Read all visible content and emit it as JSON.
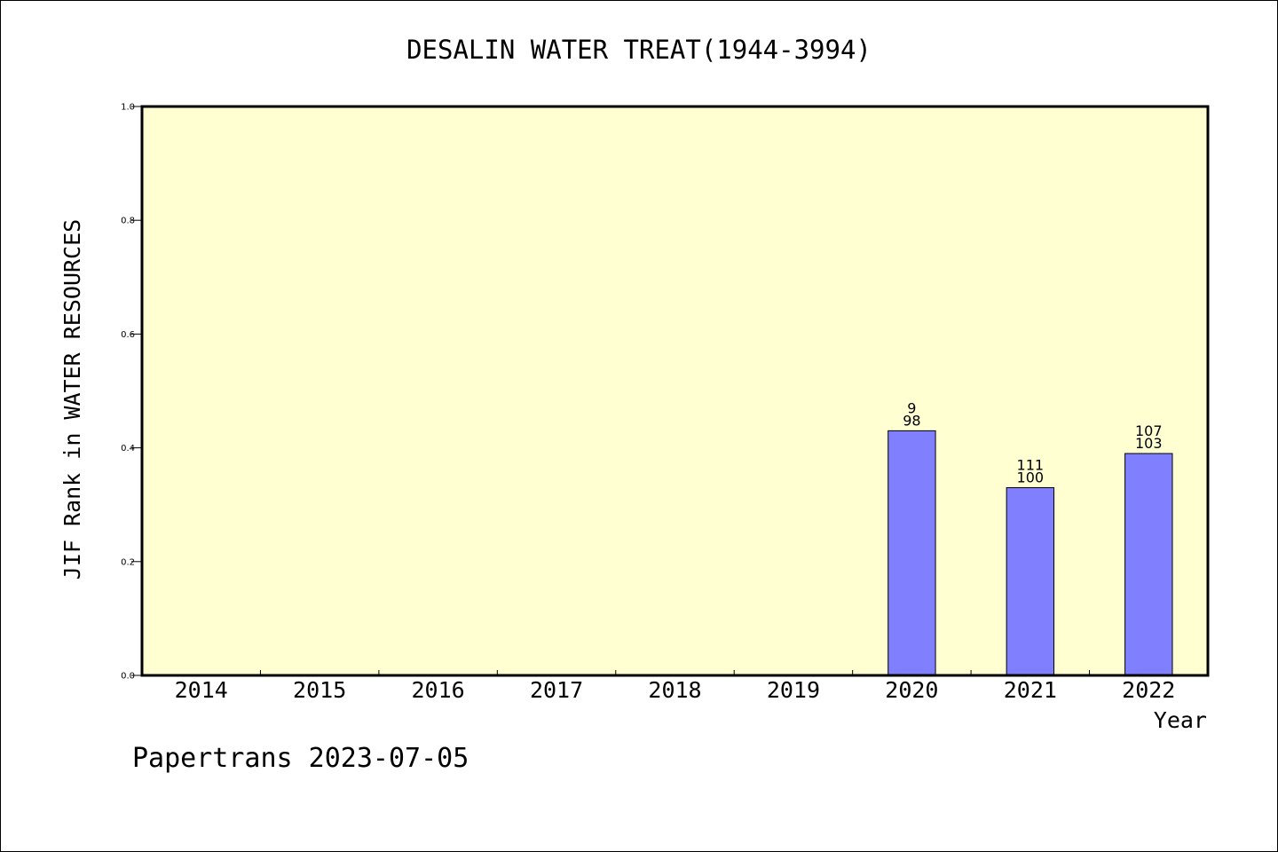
{
  "chart_data": {
    "type": "bar",
    "title": "DESALIN WATER TREAT(1944-3994)",
    "xlabel": "Year",
    "ylabel": "JIF Rank in WATER RESOURCES",
    "categories": [
      "2014",
      "2015",
      "2016",
      "2017",
      "2018",
      "2019",
      "2020",
      "2021",
      "2022"
    ],
    "values": [
      null,
      null,
      null,
      null,
      null,
      null,
      0.43,
      0.33,
      0.39
    ],
    "annotations": [
      null,
      null,
      null,
      null,
      null,
      null,
      [
        "9",
        "98"
      ],
      [
        "111",
        "100"
      ],
      [
        "107",
        "103"
      ]
    ],
    "ylim": [
      0,
      1.0
    ],
    "yticks": [
      "0.0",
      "0.2",
      "0.4",
      "0.6",
      "0.8",
      "1.0"
    ],
    "ytick_values": [
      0,
      0.2,
      0.4,
      0.6,
      0.8,
      1.0
    ],
    "grid": false,
    "colors": {
      "plot_background": "#ffffd2",
      "bar_fill": "#8080ff",
      "bar_stroke": "#000000"
    }
  },
  "footer": {
    "text": "Papertrans 2023-07-05"
  }
}
